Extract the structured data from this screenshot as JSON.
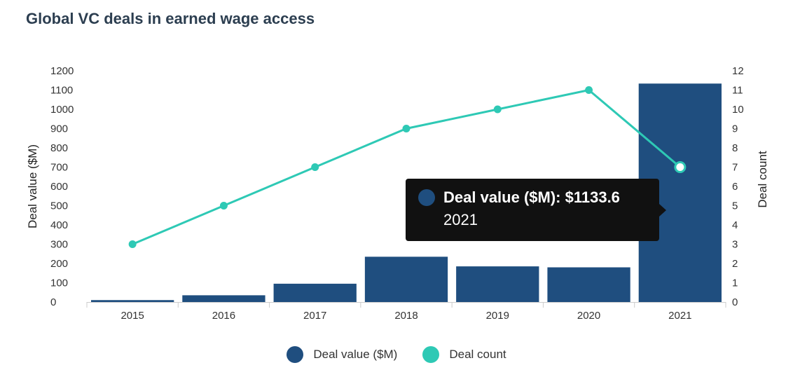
{
  "title": "Global VC deals in earned wage access",
  "colors": {
    "bar": "#1f4e7f",
    "line": "#2ec9b5",
    "grid": "#cccccc"
  },
  "chart_data": {
    "type": "bar",
    "categories": [
      "2015",
      "2016",
      "2017",
      "2018",
      "2019",
      "2020",
      "2021"
    ],
    "series": [
      {
        "name": "Deal value ($M)",
        "type": "bar",
        "axis": "left",
        "values": [
          10,
          35,
          95,
          235,
          185,
          180,
          1133.6
        ]
      },
      {
        "name": "Deal count",
        "type": "line",
        "axis": "right",
        "values": [
          3,
          5,
          7,
          9,
          10,
          11,
          7
        ]
      }
    ],
    "ylabel": "Deal value ($M)",
    "y2label": "Deal count",
    "ylim": [
      0,
      1200
    ],
    "y2lim": [
      0,
      12
    ],
    "yticks": [
      "0",
      "100",
      "200",
      "300",
      "400",
      "500",
      "600",
      "700",
      "800",
      "900",
      "1000",
      "1100",
      "1200"
    ],
    "y2ticks": [
      "0",
      "1",
      "2",
      "3",
      "4",
      "5",
      "6",
      "7",
      "8",
      "9",
      "10",
      "11",
      "12"
    ],
    "legend": [
      "Deal value ($M)",
      "Deal count"
    ],
    "legend_position": "bottom"
  },
  "tooltip": {
    "label": "Deal value ($M): $1133.6",
    "category": "2021"
  }
}
